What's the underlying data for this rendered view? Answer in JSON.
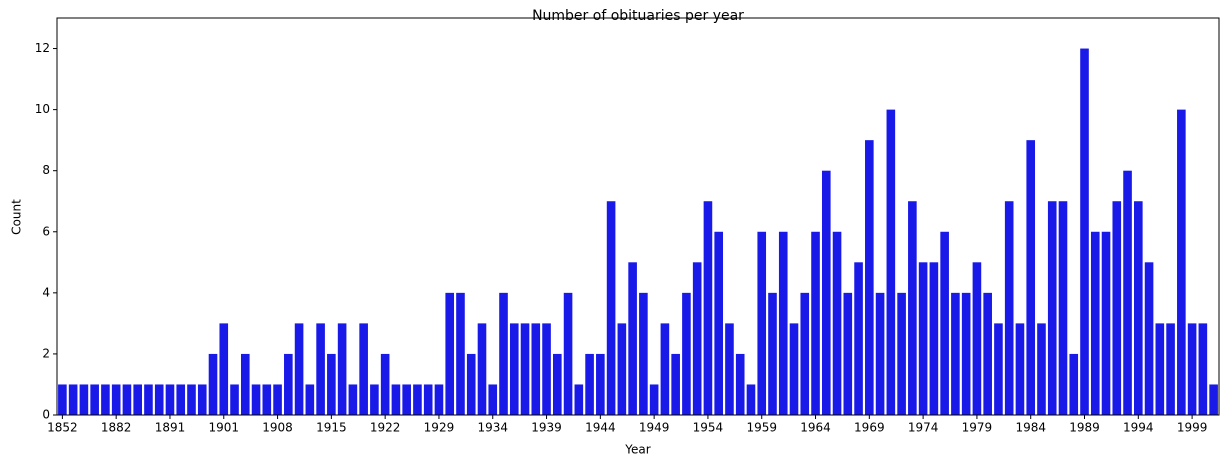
{
  "chart_data": {
    "type": "bar",
    "title": "Number of obituaries per year",
    "x_label": "Year",
    "y_label": "Count",
    "categories": [
      "1852",
      null,
      null,
      null,
      null,
      "1882",
      null,
      null,
      null,
      null,
      "1891",
      null,
      null,
      null,
      null,
      "1901",
      null,
      null,
      null,
      null,
      "1908",
      null,
      null,
      null,
      null,
      "1915",
      null,
      null,
      null,
      null,
      "1922",
      null,
      null,
      null,
      null,
      "1929",
      null,
      null,
      null,
      null,
      "1934",
      null,
      null,
      null,
      null,
      "1939",
      null,
      null,
      null,
      null,
      "1944",
      null,
      null,
      null,
      null,
      "1949",
      null,
      null,
      null,
      null,
      "1954",
      null,
      null,
      null,
      null,
      "1959",
      null,
      null,
      null,
      null,
      "1964",
      null,
      null,
      null,
      null,
      "1969",
      null,
      null,
      null,
      null,
      "1974",
      null,
      null,
      null,
      null,
      "1979",
      null,
      null,
      null,
      null,
      "1984",
      null,
      null,
      null,
      null,
      "1989",
      null,
      null,
      null,
      null,
      "1994",
      null,
      null,
      null,
      null,
      "1999",
      null,
      null
    ],
    "values": [
      1,
      1,
      1,
      1,
      1,
      1,
      1,
      1,
      1,
      1,
      1,
      1,
      1,
      1,
      2,
      3,
      1,
      2,
      1,
      1,
      1,
      2,
      3,
      1,
      3,
      2,
      3,
      1,
      3,
      1,
      2,
      1,
      1,
      1,
      1,
      1,
      4,
      4,
      2,
      3,
      1,
      4,
      3,
      3,
      3,
      3,
      2,
      4,
      1,
      2,
      2,
      7,
      3,
      5,
      4,
      1,
      3,
      2,
      4,
      5,
      7,
      6,
      3,
      2,
      1,
      6,
      4,
      6,
      3,
      4,
      6,
      8,
      6,
      4,
      5,
      9,
      4,
      10,
      4,
      7,
      5,
      5,
      6,
      4,
      4,
      5,
      4,
      3,
      7,
      3,
      9,
      3,
      7,
      7,
      2,
      12,
      6,
      6,
      7,
      8,
      7,
      5,
      3,
      3,
      10,
      3,
      3,
      1
    ],
    "color": "#1a1ae8",
    "ylim": [
      0,
      13
    ],
    "yticks": [
      0,
      2,
      4,
      6,
      8,
      10,
      12
    ]
  }
}
